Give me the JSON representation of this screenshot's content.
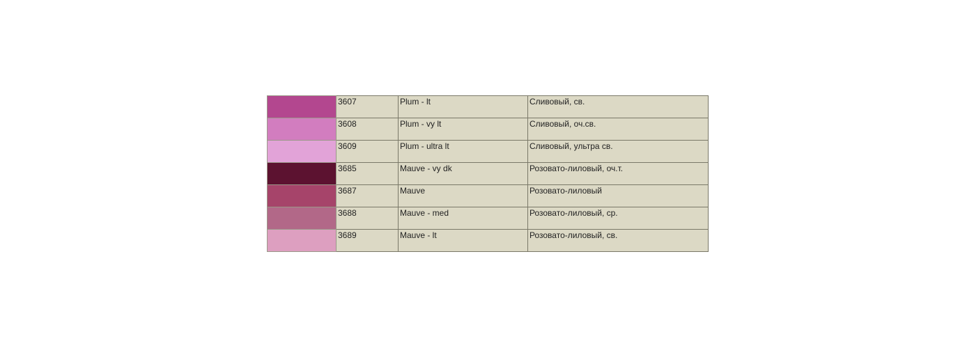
{
  "table": {
    "rows": [
      {
        "swatch": "#b3478f",
        "code": "3607",
        "name": "Plum - lt",
        "ru": "Сливовый, св."
      },
      {
        "swatch": "#d27dbf",
        "code": "3608",
        "name": "Plum - vy lt",
        "ru": "Сливовый, оч.св."
      },
      {
        "swatch": "#e2a3d8",
        "code": "3609",
        "name": "Plum - ultra lt",
        "ru": "Сливовый, ультра св."
      },
      {
        "swatch": "#5c1230",
        "code": "3685",
        "name": "Mauve - vy dk",
        "ru": "Розовато-лиловый, оч.т."
      },
      {
        "swatch": "#a6446a",
        "code": "3687",
        "name": "Mauve",
        "ru": "Розовато-лиловый"
      },
      {
        "swatch": "#b26888",
        "code": "3688",
        "name": "Mauve - med",
        "ru": "Розовато-лиловый, ср."
      },
      {
        "swatch": "#dd9fc0",
        "code": "3689",
        "name": "Mauve - lt",
        "ru": "Розовато-лиловый, св."
      }
    ]
  }
}
